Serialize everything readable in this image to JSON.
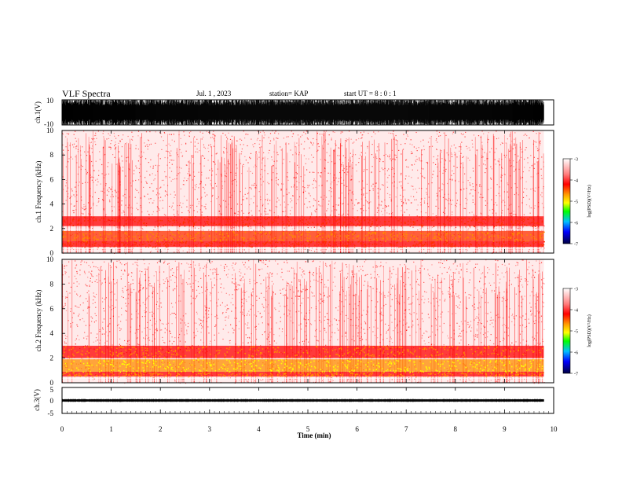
{
  "header": {
    "title": "VLF Spectra",
    "date": "Jul. 1 , 2023",
    "station": "station= KAP",
    "start": "start UT =  8 : 0 : 1"
  },
  "colors": {
    "background": "#ffffff",
    "axis": "#000000",
    "spectrogram_main": "#ff0000",
    "spectrogram_mid": "#ff6a00",
    "spectrogram_high": "#ffff00",
    "spectrogram_peak": "#00ff00"
  },
  "chart_data": [
    {
      "type": "line",
      "panel": "ch1-waveform",
      "ylabel": "ch.1(V)",
      "ylim": [
        -10,
        10
      ],
      "y_ticks": [
        "10",
        "-10"
      ],
      "x_range_min": [
        0,
        9.8
      ],
      "description_values": {
        "typical_amplitude_V": 10,
        "dense_saturation": true
      }
    },
    {
      "type": "heatmap",
      "panel": "ch1-spectrogram",
      "ylabel": "ch.1 Frequency (kHz)",
      "ylim": [
        0,
        10
      ],
      "y_ticks": [
        "0",
        "2",
        "4",
        "6",
        "8",
        "10"
      ],
      "x_range_min": [
        0,
        9.8
      ],
      "bands_kHz": [
        {
          "from": 0.5,
          "to": 1.0,
          "level": -3.6
        },
        {
          "from": 1.0,
          "to": 1.8,
          "level": -4.2
        },
        {
          "from": 2.2,
          "to": 3.0,
          "level": -3.7
        }
      ],
      "background_level": -3.2,
      "colorbar": {
        "label": "log(PSD)(V²/Hz)",
        "range": [
          -7,
          -3
        ],
        "ticks": [
          "-3",
          "-4",
          "-5",
          "-6",
          "-7"
        ]
      }
    },
    {
      "type": "heatmap",
      "panel": "ch2-spectrogram",
      "ylabel": "ch.2 Frequency (kHz)",
      "ylim": [
        0,
        10
      ],
      "y_ticks": [
        "0",
        "2",
        "4",
        "6",
        "8",
        "10"
      ],
      "x_range_min": [
        0,
        9.8
      ],
      "bands_kHz": [
        {
          "from": 0.5,
          "to": 0.9,
          "level": -4.0
        },
        {
          "from": 0.9,
          "to": 1.9,
          "level": -4.7
        },
        {
          "from": 2.0,
          "to": 3.0,
          "level": -4.0
        }
      ],
      "background_level": -3.2,
      "colorbar": {
        "label": "log(PSD)(V²/Hz)",
        "range": [
          -7,
          -3
        ],
        "ticks": [
          "-3",
          "-4",
          "-5",
          "-6",
          "-7"
        ]
      }
    },
    {
      "type": "line",
      "panel": "ch3-waveform",
      "ylabel": "ch.3(V)",
      "ylim": [
        -5,
        5
      ],
      "y_ticks": [
        "5",
        "0",
        "-5"
      ],
      "x_range_min": [
        0,
        9.8
      ],
      "description_values": {
        "center_V": 0,
        "amplitude_V": 0.5
      }
    }
  ],
  "xaxis": {
    "label": "Time (min)",
    "ticks": [
      "0",
      "1",
      "2",
      "3",
      "4",
      "5",
      "6",
      "7",
      "8",
      "9",
      "10"
    ],
    "range": [
      0,
      10
    ]
  }
}
